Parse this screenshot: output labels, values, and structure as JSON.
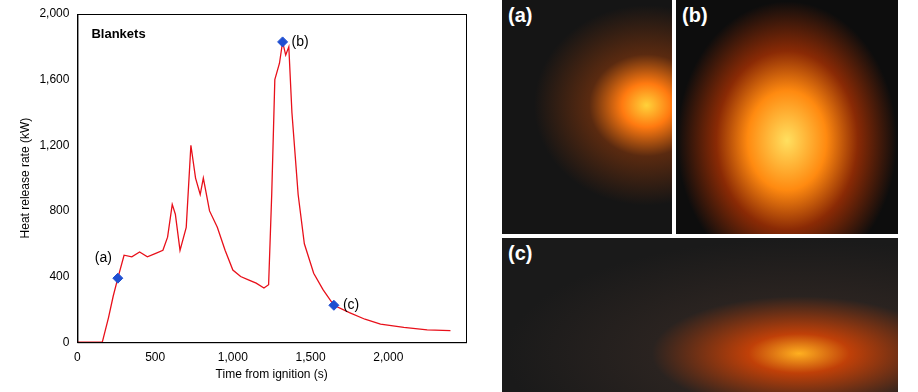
{
  "chart_data": {
    "type": "line",
    "title": "Blankets",
    "x_label": "Time from ignition (s)",
    "y_label": "Heat release rate (kW)",
    "color": "#e8101a",
    "x": [
      0,
      100,
      160,
      200,
      230,
      260,
      300,
      350,
      400,
      450,
      500,
      550,
      580,
      610,
      630,
      660,
      700,
      730,
      760,
      790,
      810,
      850,
      900,
      950,
      1000,
      1050,
      1100,
      1150,
      1200,
      1230,
      1250,
      1270,
      1300,
      1320,
      1340,
      1360,
      1380,
      1420,
      1460,
      1520,
      1580,
      1650,
      1750,
      1850,
      1950,
      2100,
      2250,
      2400
    ],
    "values": [
      0,
      0,
      0,
      150,
      280,
      390,
      530,
      520,
      550,
      520,
      540,
      560,
      640,
      840,
      780,
      560,
      700,
      1200,
      1000,
      900,
      1000,
      800,
      700,
      560,
      440,
      400,
      380,
      360,
      330,
      350,
      900,
      1600,
      1700,
      1830,
      1750,
      1800,
      1400,
      900,
      600,
      420,
      320,
      225,
      180,
      140,
      110,
      90,
      75,
      70
    ],
    "xlim": [
      0,
      2500
    ],
    "xticks": [
      0,
      500,
      1000,
      1500,
      2000
    ],
    "ylim": [
      0,
      2000
    ],
    "yticks": [
      0,
      400,
      800,
      1200,
      1600,
      2000
    ],
    "grid": false,
    "markers": {
      "marker": "diamond",
      "color": "#1f4fd1",
      "points": [
        {
          "label": "(a)",
          "x": 260,
          "y": 390
        },
        {
          "label": "(b)",
          "x": 1320,
          "y": 1830
        },
        {
          "label": "(c)",
          "x": 1650,
          "y": 225
        }
      ]
    }
  },
  "photos": [
    {
      "label": "(a)"
    },
    {
      "label": "(b)"
    },
    {
      "label": "(c)"
    }
  ]
}
